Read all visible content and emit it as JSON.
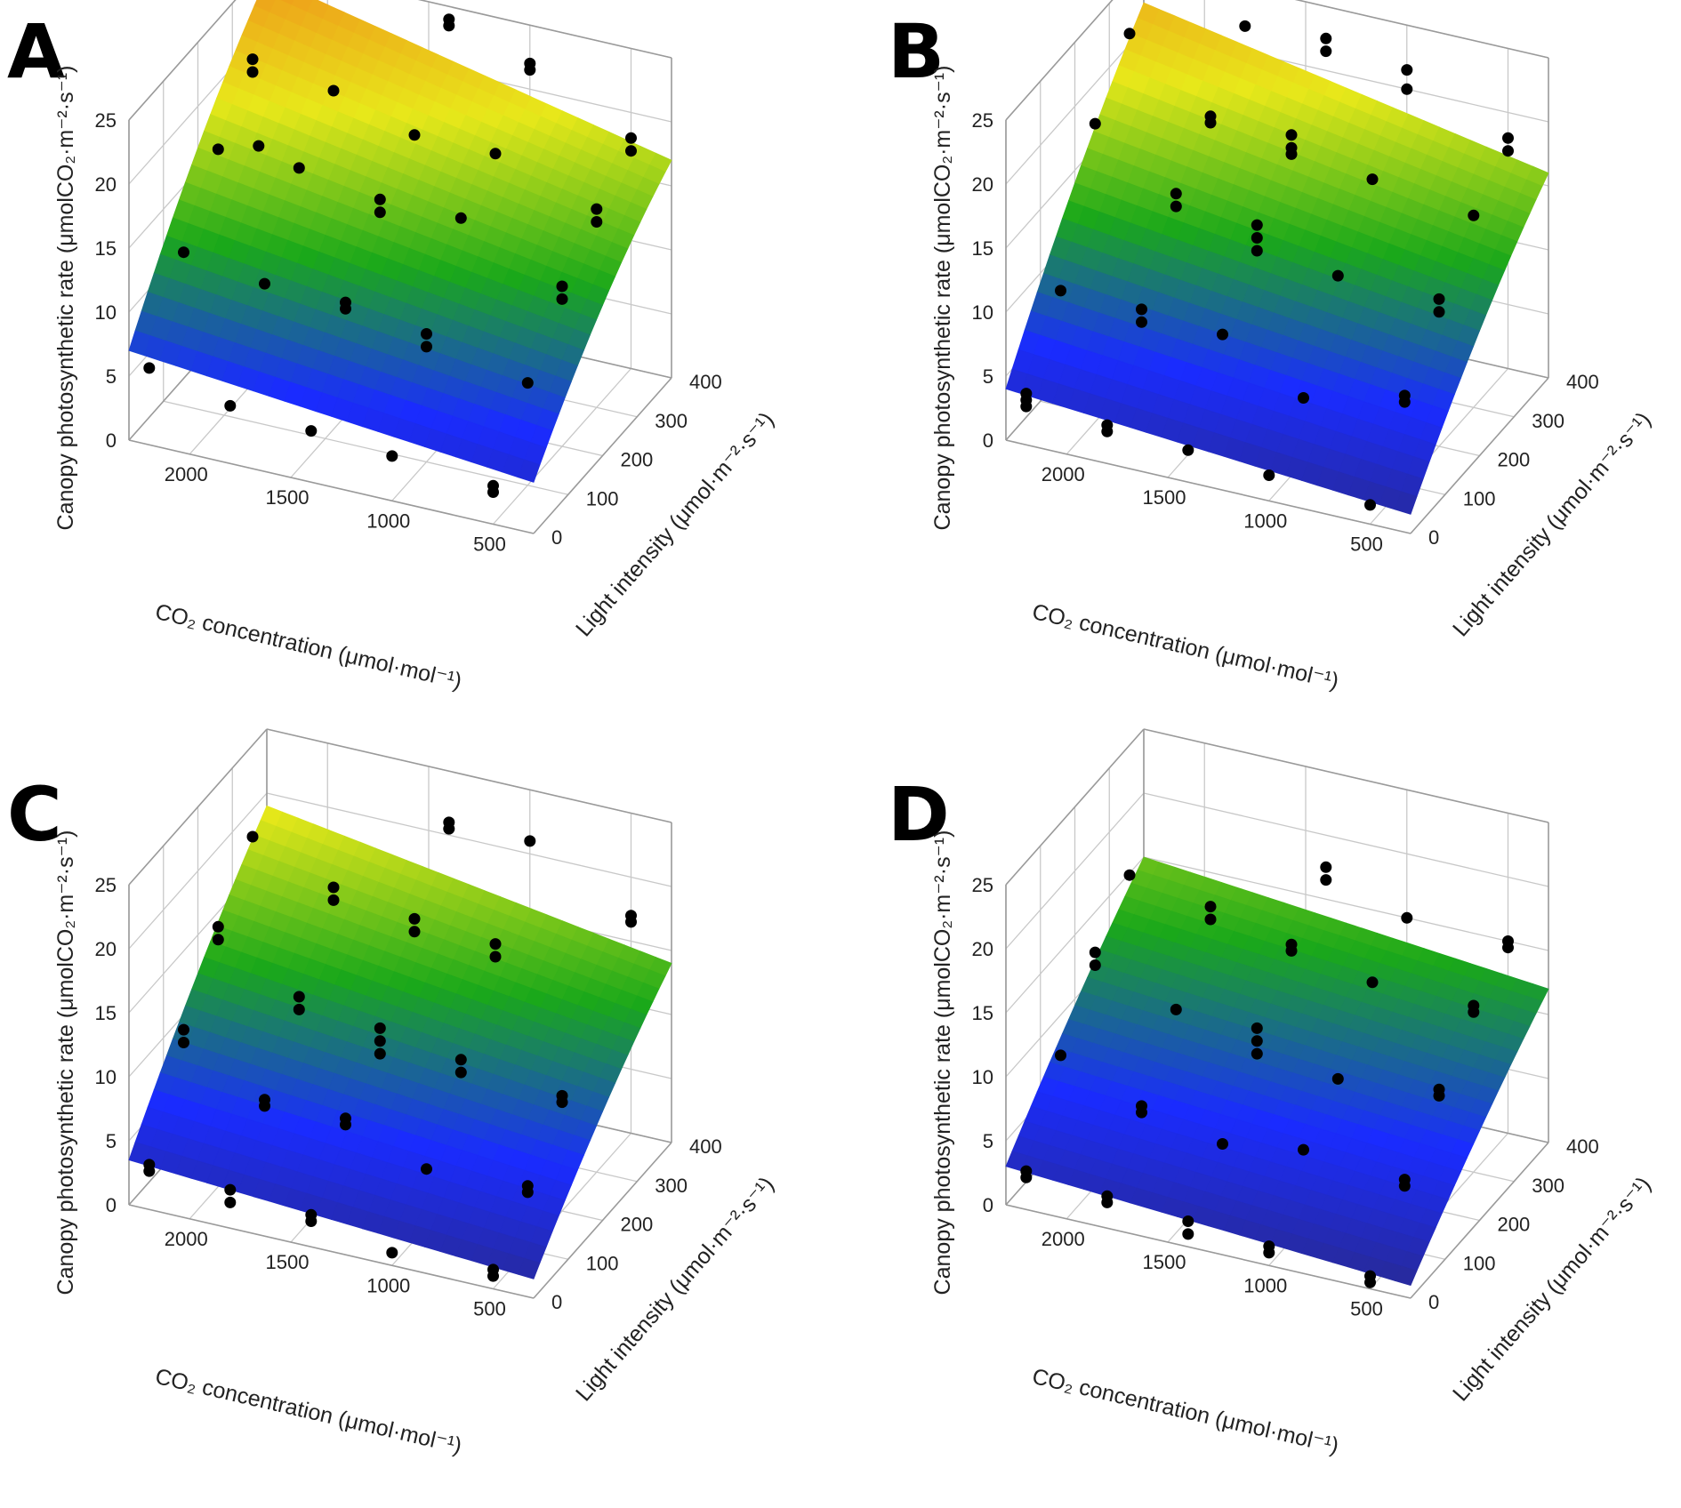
{
  "chart_data": [
    {
      "panel": "A",
      "type": "surface3d",
      "zlabel": "Canopy photosynthetic rate (μmolCO₂·m⁻²·s⁻¹)",
      "xlabel": "CO₂ concentration (μmol·mol⁻¹)",
      "ylabel": "Light intensity (μmol·m⁻²·s⁻¹)",
      "xlim": [
        300,
        2300
      ],
      "ylim": [
        0,
        400
      ],
      "zlim": [
        0,
        25
      ],
      "xticks": [
        2000,
        1500,
        1000,
        500
      ],
      "yticks": [
        0,
        100,
        200,
        300,
        400
      ],
      "zticks": [
        0,
        5,
        10,
        15,
        20,
        25
      ],
      "surface": {
        "corners": {
          "maxC_minL": 7,
          "minC_minL": 4,
          "maxC_maxL": 24,
          "minC_maxL": 17
        },
        "curvature": 2.5
      },
      "colormap": [
        "#2a2a86",
        "#1a2bff",
        "#1aa81a",
        "#e8e81a",
        "#f08a1a"
      ],
      "points": [
        {
          "co2": 2200,
          "light": 0,
          "rate": 6
        },
        {
          "co2": 1800,
          "light": 0,
          "rate": 4.5
        },
        {
          "co2": 1400,
          "light": 0,
          "rate": 4
        },
        {
          "co2": 1000,
          "light": 0,
          "rate": 3.5
        },
        {
          "co2": 500,
          "light": 0,
          "rate": 2.5
        },
        {
          "co2": 500,
          "light": 0,
          "rate": 3
        },
        {
          "co2": 2200,
          "light": 100,
          "rate": 12
        },
        {
          "co2": 1800,
          "light": 100,
          "rate": 11
        },
        {
          "co2": 1400,
          "light": 100,
          "rate": 11
        },
        {
          "co2": 1400,
          "light": 100,
          "rate": 10.5
        },
        {
          "co2": 1000,
          "light": 100,
          "rate": 10
        },
        {
          "co2": 1000,
          "light": 100,
          "rate": 9
        },
        {
          "co2": 500,
          "light": 100,
          "rate": 8
        },
        {
          "co2": 2200,
          "light": 200,
          "rate": 17
        },
        {
          "co2": 2000,
          "light": 200,
          "rate": 18
        },
        {
          "co2": 1800,
          "light": 200,
          "rate": 17
        },
        {
          "co2": 1400,
          "light": 200,
          "rate": 16
        },
        {
          "co2": 1400,
          "light": 200,
          "rate": 15
        },
        {
          "co2": 1000,
          "light": 200,
          "rate": 16
        },
        {
          "co2": 500,
          "light": 200,
          "rate": 12.5
        },
        {
          "co2": 500,
          "light": 200,
          "rate": 11.5
        },
        {
          "co2": 2200,
          "light": 300,
          "rate": 21
        },
        {
          "co2": 2200,
          "light": 300,
          "rate": 20
        },
        {
          "co2": 1800,
          "light": 300,
          "rate": 20
        },
        {
          "co2": 1400,
          "light": 300,
          "rate": 18
        },
        {
          "co2": 1000,
          "light": 300,
          "rate": 18
        },
        {
          "co2": 500,
          "light": 300,
          "rate": 15.5
        },
        {
          "co2": 500,
          "light": 300,
          "rate": 14.5
        },
        {
          "co2": 1400,
          "light": 400,
          "rate": 24
        },
        {
          "co2": 1400,
          "light": 400,
          "rate": 23.5
        },
        {
          "co2": 1000,
          "light": 400,
          "rate": 22
        },
        {
          "co2": 1000,
          "light": 400,
          "rate": 21.5
        },
        {
          "co2": 500,
          "light": 400,
          "rate": 18
        },
        {
          "co2": 500,
          "light": 400,
          "rate": 17
        }
      ]
    },
    {
      "panel": "B",
      "type": "surface3d",
      "zlabel": "Canopy photosynthetic rate (μmolCO₂·m⁻²·s⁻¹)",
      "xlabel": "CO₂ concentration (μmol·mol⁻¹)",
      "ylabel": "Light intensity (μmol·m⁻²·s⁻¹)",
      "xlim": [
        300,
        2300
      ],
      "ylim": [
        0,
        400
      ],
      "zlim": [
        0,
        25
      ],
      "xticks": [
        2000,
        1500,
        1000,
        500
      ],
      "yticks": [
        0,
        100,
        200,
        300,
        400
      ],
      "zticks": [
        0,
        5,
        10,
        15,
        20,
        25
      ],
      "surface": {
        "corners": {
          "maxC_minL": 4,
          "minC_minL": 1.5,
          "maxC_maxL": 22,
          "minC_maxL": 16
        },
        "curvature": 2.0
      },
      "colormap": [
        "#2a2a86",
        "#1a2bff",
        "#1aa81a",
        "#e8e81a",
        "#f08a1a"
      ],
      "points": [
        {
          "co2": 2200,
          "light": 0,
          "rate": 4
        },
        {
          "co2": 2200,
          "light": 0,
          "rate": 3.5
        },
        {
          "co2": 2200,
          "light": 0,
          "rate": 3
        },
        {
          "co2": 1800,
          "light": 0,
          "rate": 3
        },
        {
          "co2": 1800,
          "light": 0,
          "rate": 2.5
        },
        {
          "co2": 1400,
          "light": 0,
          "rate": 2.5
        },
        {
          "co2": 1000,
          "light": 0,
          "rate": 2
        },
        {
          "co2": 500,
          "light": 0,
          "rate": 1.5
        },
        {
          "co2": 2200,
          "light": 100,
          "rate": 9
        },
        {
          "co2": 1800,
          "light": 100,
          "rate": 9
        },
        {
          "co2": 1800,
          "light": 100,
          "rate": 8
        },
        {
          "co2": 1400,
          "light": 100,
          "rate": 8.5
        },
        {
          "co2": 1000,
          "light": 100,
          "rate": 5
        },
        {
          "co2": 500,
          "light": 100,
          "rate": 7
        },
        {
          "co2": 500,
          "light": 100,
          "rate": 6.5
        },
        {
          "co2": 2200,
          "light": 200,
          "rate": 19
        },
        {
          "co2": 1800,
          "light": 200,
          "rate": 15
        },
        {
          "co2": 1800,
          "light": 200,
          "rate": 14
        },
        {
          "co2": 1400,
          "light": 200,
          "rate": 14
        },
        {
          "co2": 1400,
          "light": 200,
          "rate": 13
        },
        {
          "co2": 1400,
          "light": 200,
          "rate": 12
        },
        {
          "co2": 1000,
          "light": 200,
          "rate": 11.5
        },
        {
          "co2": 500,
          "light": 200,
          "rate": 11.5
        },
        {
          "co2": 500,
          "light": 200,
          "rate": 10.5
        },
        {
          "co2": 2200,
          "light": 300,
          "rate": 23
        },
        {
          "co2": 1800,
          "light": 300,
          "rate": 18
        },
        {
          "co2": 1800,
          "light": 300,
          "rate": 17.5
        },
        {
          "co2": 1400,
          "light": 300,
          "rate": 18
        },
        {
          "co2": 1400,
          "light": 300,
          "rate": 17
        },
        {
          "co2": 1400,
          "light": 300,
          "rate": 16.5
        },
        {
          "co2": 1000,
          "light": 300,
          "rate": 16
        },
        {
          "co2": 500,
          "light": 300,
          "rate": 15
        },
        {
          "co2": 1800,
          "light": 400,
          "rate": 22
        },
        {
          "co2": 1400,
          "light": 400,
          "rate": 22.5
        },
        {
          "co2": 1400,
          "light": 400,
          "rate": 21.5
        },
        {
          "co2": 1000,
          "light": 400,
          "rate": 21.5
        },
        {
          "co2": 1000,
          "light": 400,
          "rate": 20
        },
        {
          "co2": 500,
          "light": 400,
          "rate": 18
        },
        {
          "co2": 500,
          "light": 400,
          "rate": 17
        }
      ]
    },
    {
      "panel": "C",
      "type": "surface3d",
      "zlabel": "Canopy photosynthetic rate (μmolCO₂·m⁻²·s⁻¹)",
      "xlabel": "CO₂ concentration (μmol·mol⁻¹)",
      "ylabel": "Light intensity (μmol·m⁻²·s⁻¹)",
      "xlim": [
        300,
        2300
      ],
      "ylim": [
        0,
        400
      ],
      "zlim": [
        0,
        25
      ],
      "xticks": [
        2000,
        1500,
        1000,
        500
      ],
      "yticks": [
        0,
        100,
        200,
        300,
        400
      ],
      "zticks": [
        0,
        5,
        10,
        15,
        20,
        25
      ],
      "surface": {
        "corners": {
          "maxC_minL": 3.5,
          "minC_minL": 1.5,
          "maxC_maxL": 19,
          "minC_maxL": 14
        },
        "curvature": 1.5
      },
      "colormap": [
        "#2a2a86",
        "#1a2bff",
        "#1aa81a",
        "#e8e81a",
        "#f08a1a"
      ],
      "points": [
        {
          "co2": 2200,
          "light": 0,
          "rate": 3.5
        },
        {
          "co2": 2200,
          "light": 0,
          "rate": 3
        },
        {
          "co2": 1800,
          "light": 0,
          "rate": 3
        },
        {
          "co2": 1800,
          "light": 0,
          "rate": 2
        },
        {
          "co2": 1400,
          "light": 0,
          "rate": 2.5
        },
        {
          "co2": 1400,
          "light": 0,
          "rate": 2
        },
        {
          "co2": 1000,
          "light": 0,
          "rate": 1
        },
        {
          "co2": 500,
          "light": 0,
          "rate": 1.5
        },
        {
          "co2": 500,
          "light": 0,
          "rate": 1
        },
        {
          "co2": 2200,
          "light": 100,
          "rate": 11
        },
        {
          "co2": 2200,
          "light": 100,
          "rate": 10
        },
        {
          "co2": 1800,
          "light": 100,
          "rate": 7
        },
        {
          "co2": 1800,
          "light": 100,
          "rate": 6.5
        },
        {
          "co2": 1400,
          "light": 100,
          "rate": 7
        },
        {
          "co2": 1400,
          "light": 100,
          "rate": 6.5
        },
        {
          "co2": 1000,
          "light": 100,
          "rate": 4.5
        },
        {
          "co2": 500,
          "light": 100,
          "rate": 5
        },
        {
          "co2": 500,
          "light": 100,
          "rate": 4.5
        },
        {
          "co2": 2200,
          "light": 200,
          "rate": 16
        },
        {
          "co2": 2200,
          "light": 200,
          "rate": 15
        },
        {
          "co2": 1800,
          "light": 200,
          "rate": 12
        },
        {
          "co2": 1800,
          "light": 200,
          "rate": 11
        },
        {
          "co2": 1400,
          "light": 200,
          "rate": 11
        },
        {
          "co2": 1400,
          "light": 200,
          "rate": 10
        },
        {
          "co2": 1400,
          "light": 200,
          "rate": 9
        },
        {
          "co2": 1000,
          "light": 200,
          "rate": 10
        },
        {
          "co2": 1000,
          "light": 200,
          "rate": 9
        },
        {
          "co2": 500,
          "light": 200,
          "rate": 9
        },
        {
          "co2": 500,
          "light": 200,
          "rate": 8.5
        },
        {
          "co2": 2200,
          "light": 300,
          "rate": 20
        },
        {
          "co2": 1800,
          "light": 300,
          "rate": 17.5
        },
        {
          "co2": 1800,
          "light": 300,
          "rate": 16.5
        },
        {
          "co2": 1400,
          "light": 300,
          "rate": 16.5
        },
        {
          "co2": 1400,
          "light": 300,
          "rate": 15.5
        },
        {
          "co2": 1000,
          "light": 300,
          "rate": 16
        },
        {
          "co2": 1000,
          "light": 300,
          "rate": 15
        },
        {
          "co2": 1400,
          "light": 400,
          "rate": 21
        },
        {
          "co2": 1400,
          "light": 400,
          "rate": 20.5
        },
        {
          "co2": 1000,
          "light": 400,
          "rate": 21
        },
        {
          "co2": 500,
          "light": 400,
          "rate": 17
        },
        {
          "co2": 500,
          "light": 400,
          "rate": 16.5
        }
      ]
    },
    {
      "panel": "D",
      "type": "surface3d",
      "zlabel": "Canopy photosynthetic rate (μmolCO₂·m⁻²·s⁻¹)",
      "xlabel": "CO₂ concentration (μmol·mol⁻¹)",
      "ylabel": "Light intensity (μmol·m⁻²·s⁻¹)",
      "xlim": [
        300,
        2300
      ],
      "ylim": [
        0,
        400
      ],
      "zlim": [
        0,
        25
      ],
      "xticks": [
        2000,
        1500,
        1000,
        500
      ],
      "yticks": [
        0,
        100,
        200,
        300,
        400
      ],
      "zticks": [
        0,
        5,
        10,
        15,
        20,
        25
      ],
      "surface": {
        "corners": {
          "maxC_minL": 3,
          "minC_minL": 1,
          "maxC_maxL": 15,
          "minC_maxL": 12
        },
        "curvature": 1.0
      },
      "colormap": [
        "#2a2a86",
        "#1a2bff",
        "#1aa81a",
        "#e8e81a",
        "#f08a1a"
      ],
      "points": [
        {
          "co2": 2200,
          "light": 0,
          "rate": 3
        },
        {
          "co2": 2200,
          "light": 0,
          "rate": 2.5
        },
        {
          "co2": 1800,
          "light": 0,
          "rate": 2.5
        },
        {
          "co2": 1800,
          "light": 0,
          "rate": 2
        },
        {
          "co2": 1400,
          "light": 0,
          "rate": 2
        },
        {
          "co2": 1400,
          "light": 0,
          "rate": 1
        },
        {
          "co2": 1000,
          "light": 0,
          "rate": 1.5
        },
        {
          "co2": 1000,
          "light": 0,
          "rate": 1
        },
        {
          "co2": 500,
          "light": 0,
          "rate": 1
        },
        {
          "co2": 500,
          "light": 0,
          "rate": 0.5
        },
        {
          "co2": 2200,
          "light": 100,
          "rate": 9
        },
        {
          "co2": 1800,
          "light": 100,
          "rate": 6.5
        },
        {
          "co2": 1800,
          "light": 100,
          "rate": 6
        },
        {
          "co2": 1400,
          "light": 100,
          "rate": 5
        },
        {
          "co2": 1000,
          "light": 100,
          "rate": 6
        },
        {
          "co2": 500,
          "light": 100,
          "rate": 5.5
        },
        {
          "co2": 500,
          "light": 100,
          "rate": 5
        },
        {
          "co2": 2200,
          "light": 200,
          "rate": 14
        },
        {
          "co2": 2200,
          "light": 200,
          "rate": 13
        },
        {
          "co2": 1800,
          "light": 200,
          "rate": 11
        },
        {
          "co2": 1400,
          "light": 200,
          "rate": 11
        },
        {
          "co2": 1400,
          "light": 200,
          "rate": 10
        },
        {
          "co2": 1400,
          "light": 200,
          "rate": 9
        },
        {
          "co2": 1000,
          "light": 200,
          "rate": 8.5
        },
        {
          "co2": 500,
          "light": 200,
          "rate": 9.5
        },
        {
          "co2": 500,
          "light": 200,
          "rate": 9
        },
        {
          "co2": 2200,
          "light": 300,
          "rate": 17
        },
        {
          "co2": 1800,
          "light": 300,
          "rate": 16
        },
        {
          "co2": 1800,
          "light": 300,
          "rate": 15
        },
        {
          "co2": 1400,
          "light": 300,
          "rate": 14.5
        },
        {
          "co2": 1400,
          "light": 300,
          "rate": 14
        },
        {
          "co2": 1000,
          "light": 300,
          "rate": 13
        },
        {
          "co2": 500,
          "light": 300,
          "rate": 13
        },
        {
          "co2": 500,
          "light": 300,
          "rate": 12.5
        },
        {
          "co2": 1400,
          "light": 400,
          "rate": 17.5
        },
        {
          "co2": 1400,
          "light": 400,
          "rate": 16.5
        },
        {
          "co2": 1000,
          "light": 400,
          "rate": 15
        },
        {
          "co2": 500,
          "light": 400,
          "rate": 15
        },
        {
          "co2": 500,
          "light": 400,
          "rate": 14.5
        }
      ]
    }
  ]
}
